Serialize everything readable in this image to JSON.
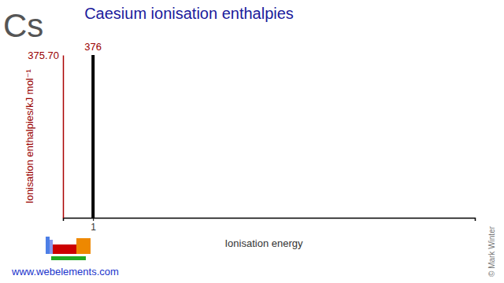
{
  "chart_data": {
    "type": "bar",
    "title": "Caesium ionisation enthalpies",
    "annotations": [
      "Cs",
      "www.webelements.com",
      "© Mark Winter"
    ],
    "x_label": "Ionisation energy",
    "y_label": "Ionisation enthalpies/kJ mol⁻¹",
    "x": [
      1
    ],
    "values": [
      375.7
    ],
    "value_labels": [
      "376"
    ],
    "data_labels": true,
    "color": "#000000",
    "xlim": [
      0,
      13.7
    ],
    "xticks": [
      1
    ],
    "ylim": [
      0,
      375.7
    ],
    "yticks": [
      {
        "value": 375.7,
        "label": "375.70"
      }
    ]
  }
}
